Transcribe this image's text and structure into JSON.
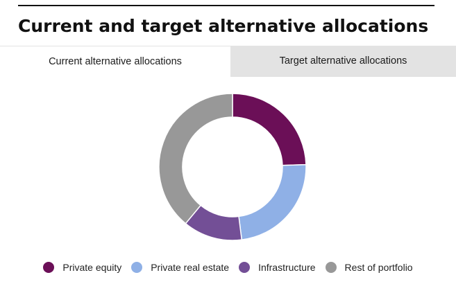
{
  "header": {
    "title": "Current and target alternative allocations"
  },
  "tabs": [
    {
      "label": "Current alternative allocations",
      "selected": true
    },
    {
      "label": "Target alternative allocations",
      "selected": false
    }
  ],
  "chart_data": {
    "type": "pie",
    "variant": "donut",
    "start_angle_deg": 0,
    "direction": "clockwise",
    "legend_position": "bottom",
    "slices": [
      {
        "label": "Private equity",
        "value": 24.5,
        "color": "#6b0f57"
      },
      {
        "label": "Private real estate",
        "value": 23.5,
        "color": "#8fb0e6"
      },
      {
        "label": "Infrastructure",
        "value": 13.0,
        "color": "#734f96"
      },
      {
        "label": "Rest of portfolio",
        "value": 39.0,
        "color": "#989898"
      }
    ]
  }
}
